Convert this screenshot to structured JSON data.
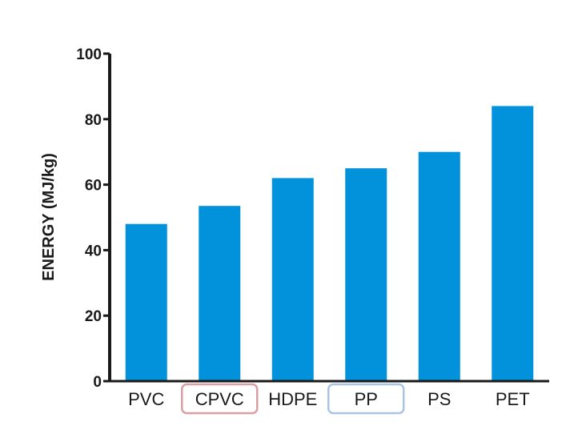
{
  "chart_data": {
    "type": "bar",
    "categories": [
      "PVC",
      "CPVC",
      "HDPE",
      "PP",
      "PS",
      "PET"
    ],
    "values": [
      48,
      53.5,
      62,
      65,
      70,
      84
    ],
    "title": "",
    "xlabel": "",
    "ylabel": "ENERGY (MJ/kg)",
    "ylim": [
      0,
      100
    ],
    "yticks": [
      "0",
      "20",
      "40",
      "60",
      "80",
      "100"
    ],
    "grid": false,
    "bar_color": "#0291DB",
    "highlighted_categories": [
      {
        "category": "CPVC",
        "box_color": "#D9A0A3"
      },
      {
        "category": "PP",
        "box_color": "#A9C4E4"
      }
    ]
  }
}
